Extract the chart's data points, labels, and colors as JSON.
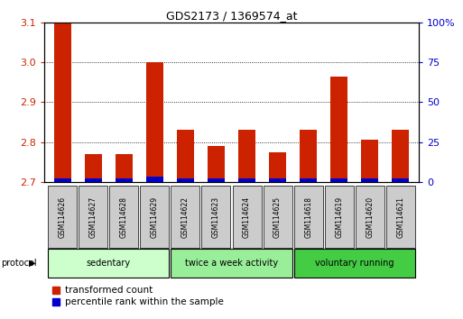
{
  "title": "GDS2173 / 1369574_at",
  "samples": [
    "GSM114626",
    "GSM114627",
    "GSM114628",
    "GSM114629",
    "GSM114622",
    "GSM114623",
    "GSM114624",
    "GSM114625",
    "GSM114618",
    "GSM114619",
    "GSM114620",
    "GSM114621"
  ],
  "transformed_count": [
    3.1,
    2.77,
    2.77,
    3.0,
    2.83,
    2.79,
    2.83,
    2.775,
    2.83,
    2.965,
    2.805,
    2.83
  ],
  "percentile_rank": [
    2,
    2,
    2,
    3,
    2,
    2,
    2,
    2,
    2,
    2,
    2,
    2
  ],
  "ylim_left": [
    2.7,
    3.1
  ],
  "ylim_right": [
    0,
    100
  ],
  "yticks_left": [
    2.7,
    2.8,
    2.9,
    3.0,
    3.1
  ],
  "yticks_right": [
    0,
    25,
    50,
    75,
    100
  ],
  "ytick_labels_right": [
    "0",
    "25",
    "50",
    "75",
    "100%"
  ],
  "bar_color_red": "#cc2200",
  "bar_color_blue": "#0000cc",
  "bar_width": 0.55,
  "groups": [
    {
      "label": "sedentary",
      "indices": [
        0,
        1,
        2,
        3
      ],
      "color": "#ccffcc"
    },
    {
      "label": "twice a week activity",
      "indices": [
        4,
        5,
        6,
        7
      ],
      "color": "#99ee99"
    },
    {
      "label": "voluntary running",
      "indices": [
        8,
        9,
        10,
        11
      ],
      "color": "#44cc44"
    }
  ],
  "protocol_label": "protocol",
  "legend_red_label": "transformed count",
  "legend_blue_label": "percentile rank within the sample",
  "background_color": "#ffffff",
  "plot_bg_color": "#ffffff",
  "tick_color_left": "#cc2200",
  "tick_color_right": "#0000cc",
  "xlabel_bg_color": "#cccccc",
  "figsize": [
    5.13,
    3.54
  ],
  "dpi": 100
}
